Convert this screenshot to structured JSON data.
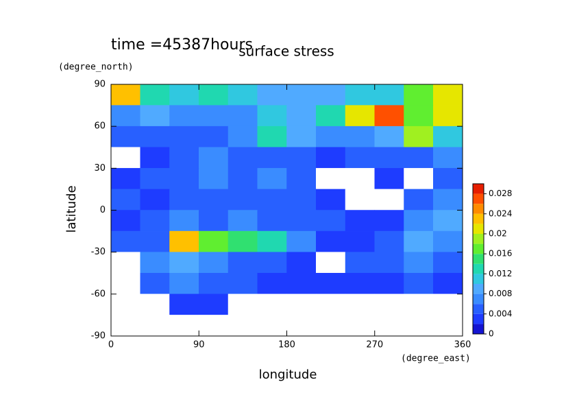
{
  "chart_data": {
    "type": "contour",
    "title": "surface stress",
    "subtitle": "time =45387hours",
    "xlabel": "longitude",
    "xunits": "(degree_east)",
    "ylabel": "latitude",
    "yunits": "(degree_north)",
    "xlim": [
      0,
      360
    ],
    "xticks": [
      0,
      90,
      180,
      270,
      360
    ],
    "ylim": [
      -90,
      90
    ],
    "yticks": [
      -90,
      -60,
      -30,
      0,
      30,
      60,
      90
    ],
    "field": {
      "lon_edges": [
        0,
        30,
        60,
        90,
        120,
        150,
        180,
        210,
        240,
        270,
        300,
        330,
        360
      ],
      "lat_edges": [
        90,
        75,
        60,
        45,
        30,
        15,
        0,
        -15,
        -30,
        -45,
        -60,
        -75,
        -90
      ],
      "values": [
        [
          0.022,
          0.012,
          0.01,
          0.012,
          0.01,
          0.008,
          0.008,
          0.008,
          0.01,
          0.01,
          0.016,
          0.02
        ],
        [
          0.006,
          0.008,
          0.006,
          0.006,
          0.006,
          0.01,
          0.008,
          0.012,
          0.02,
          0.026,
          0.016,
          0.02
        ],
        [
          0.004,
          0.004,
          0.004,
          0.004,
          0.006,
          0.012,
          0.008,
          0.006,
          0.006,
          0.008,
          0.018,
          0.01
        ],
        [
          0,
          0.002,
          0.004,
          0.006,
          0.004,
          0.004,
          0.004,
          0.002,
          0.004,
          0.004,
          0.004,
          0.006
        ],
        [
          0.002,
          0.004,
          0.004,
          0.006,
          0.004,
          0.006,
          0.004,
          0,
          0,
          0.002,
          0,
          0.004
        ],
        [
          0.004,
          0.002,
          0.004,
          0.004,
          0.004,
          0.004,
          0.004,
          0.002,
          0,
          0,
          0.004,
          0.006
        ],
        [
          0.002,
          0.004,
          0.006,
          0.004,
          0.006,
          0.004,
          0.004,
          0.004,
          0.002,
          0.002,
          0.006,
          0.008
        ],
        [
          0.004,
          0.004,
          0.022,
          0.016,
          0.014,
          0.012,
          0.006,
          0.002,
          0.002,
          0.004,
          0.008,
          0.006
        ],
        [
          0,
          0.006,
          0.008,
          0.006,
          0.004,
          0.004,
          0.002,
          0,
          0.004,
          0.004,
          0.006,
          0.004
        ],
        [
          0,
          0.004,
          0.006,
          0.004,
          0.004,
          0.002,
          0.002,
          0.002,
          0.002,
          0.002,
          0.004,
          0.002
        ],
        [
          0,
          0,
          0.002,
          0.002,
          0,
          0,
          0,
          0,
          0,
          0,
          0,
          0
        ],
        [
          0,
          0,
          0,
          0,
          0,
          0,
          0,
          0,
          0,
          0,
          0,
          0
        ]
      ]
    },
    "clim": [
      0,
      0.03
    ],
    "cticks": [
      0,
      0.004,
      0.008,
      0.012,
      0.016,
      0.02,
      0.024,
      0.028
    ],
    "colors": [
      "#1414d2",
      "#1e3cff",
      "#2860ff",
      "#3a8cff",
      "#50aaff",
      "#30c8e0",
      "#20d8b0",
      "#30e070",
      "#60ee30",
      "#a0f020",
      "#e6e600",
      "#ffc000",
      "#ff8c00",
      "#ff5000",
      "#e61e00"
    ]
  }
}
